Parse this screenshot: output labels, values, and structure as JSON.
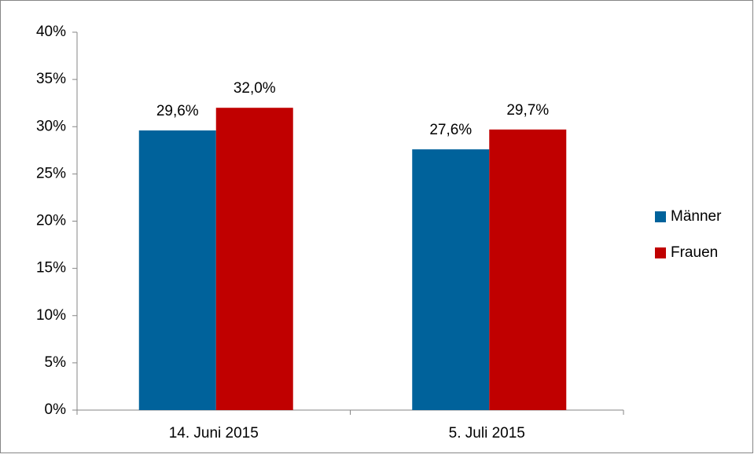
{
  "chart_data": {
    "type": "bar",
    "categories": [
      "14. Juni 2015",
      "5. Juli 2015"
    ],
    "series": [
      {
        "name": "Männer",
        "color": "#00629b",
        "values": [
          29.6,
          27.6
        ],
        "value_labels": [
          "29,6%",
          "27,6%"
        ]
      },
      {
        "name": "Frauen",
        "color": "#c00000",
        "values": [
          32.0,
          29.7
        ],
        "value_labels": [
          "32,0%",
          "29,7%"
        ]
      }
    ],
    "ylim": [
      0,
      40
    ],
    "yticks": [
      {
        "value": 0,
        "label": "0%"
      },
      {
        "value": 5,
        "label": "5%"
      },
      {
        "value": 10,
        "label": "10%"
      },
      {
        "value": 15,
        "label": "15%"
      },
      {
        "value": 20,
        "label": "20%"
      },
      {
        "value": 25,
        "label": "25%"
      },
      {
        "value": 30,
        "label": "30%"
      },
      {
        "value": 35,
        "label": "35%"
      },
      {
        "value": 40,
        "label": "40%"
      }
    ],
    "legend": "right"
  }
}
